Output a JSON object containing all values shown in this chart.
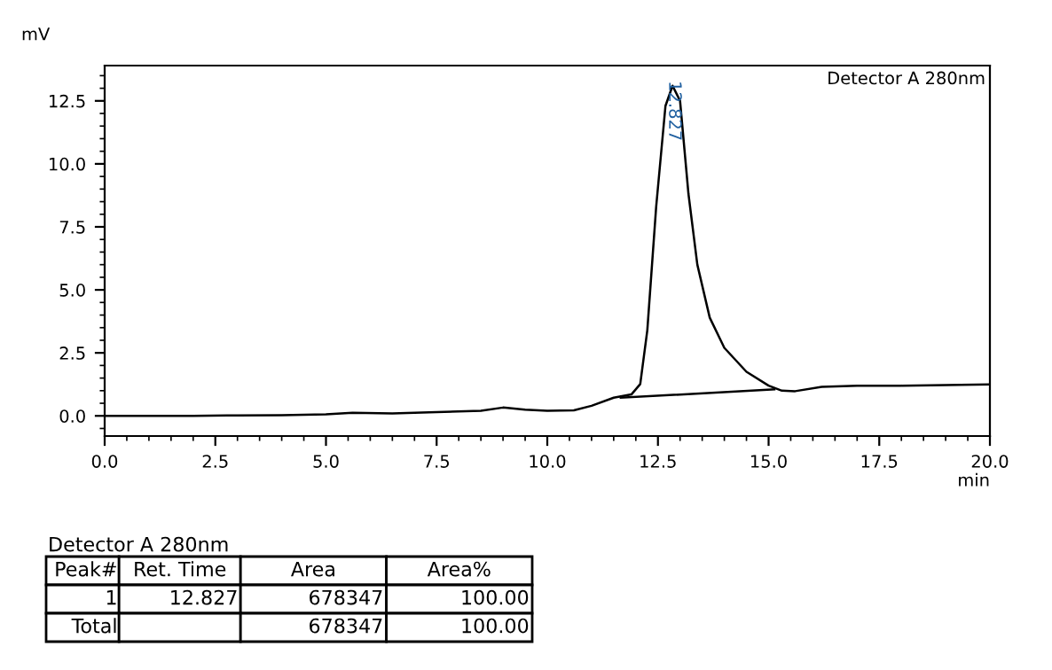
{
  "chart_data": {
    "type": "line",
    "xlabel": "min",
    "ylabel": "mV",
    "xlim": [
      0,
      20
    ],
    "ylim": [
      -0.8,
      13.9
    ],
    "xticks": [
      {
        "value": 0,
        "label": "0.0"
      },
      {
        "value": 2.5,
        "label": "2.5"
      },
      {
        "value": 5,
        "label": "5.0"
      },
      {
        "value": 7.5,
        "label": "7.5"
      },
      {
        "value": 10,
        "label": "10.0"
      },
      {
        "value": 12.5,
        "label": "12.5"
      },
      {
        "value": 15,
        "label": "15.0"
      },
      {
        "value": 17.5,
        "label": "17.5"
      },
      {
        "value": 20,
        "label": "20.0"
      }
    ],
    "yticks": [
      {
        "value": 0,
        "label": "0.0"
      },
      {
        "value": 2.5,
        "label": "2.5"
      },
      {
        "value": 5,
        "label": "5.0"
      },
      {
        "value": 7.5,
        "label": "7.5"
      },
      {
        "value": 10,
        "label": "10.0"
      },
      {
        "value": 12.5,
        "label": "12.5"
      }
    ],
    "grid": false,
    "legend": false,
    "marker": "none",
    "line_style": "solid",
    "series": [
      {
        "color": "#000000",
        "x": [
          0,
          1,
          2,
          3,
          4,
          5,
          5.6,
          6.5,
          7.5,
          8.5,
          9.0,
          9.5,
          10.0,
          10.6,
          11.0,
          11.5,
          11.9,
          12.1,
          12.26,
          12.46,
          12.67,
          12.83,
          13.0,
          13.19,
          13.39,
          13.67,
          14.0,
          14.5,
          15.0,
          15.3,
          15.6,
          16.2,
          17.0,
          18.0,
          19.0,
          20.0
        ],
        "values": [
          0,
          0,
          0,
          0.02,
          0.03,
          0.06,
          0.12,
          0.1,
          0.15,
          0.2,
          0.33,
          0.25,
          0.2,
          0.22,
          0.4,
          0.72,
          0.85,
          1.26,
          3.4,
          8.3,
          12.3,
          13.1,
          12.5,
          8.8,
          6.0,
          3.9,
          2.7,
          1.75,
          1.2,
          1.0,
          0.98,
          1.15,
          1.2,
          1.2,
          1.22,
          1.25
        ]
      },
      {
        "color": "#000000",
        "x": [
          11.66,
          15.13
        ],
        "values": [
          0.72,
          1.05
        ]
      }
    ],
    "annotations": [
      {
        "text": "12.827",
        "x": 12.827,
        "y": 13.1
      },
      "Detector A 280nm",
      "Detector A 280nm",
      "Peak#",
      "Ret. Time",
      "Area",
      "Area%",
      "1",
      "12.827",
      "678347",
      "100.00",
      "Total",
      null,
      "678347",
      "100.00"
    ]
  }
}
